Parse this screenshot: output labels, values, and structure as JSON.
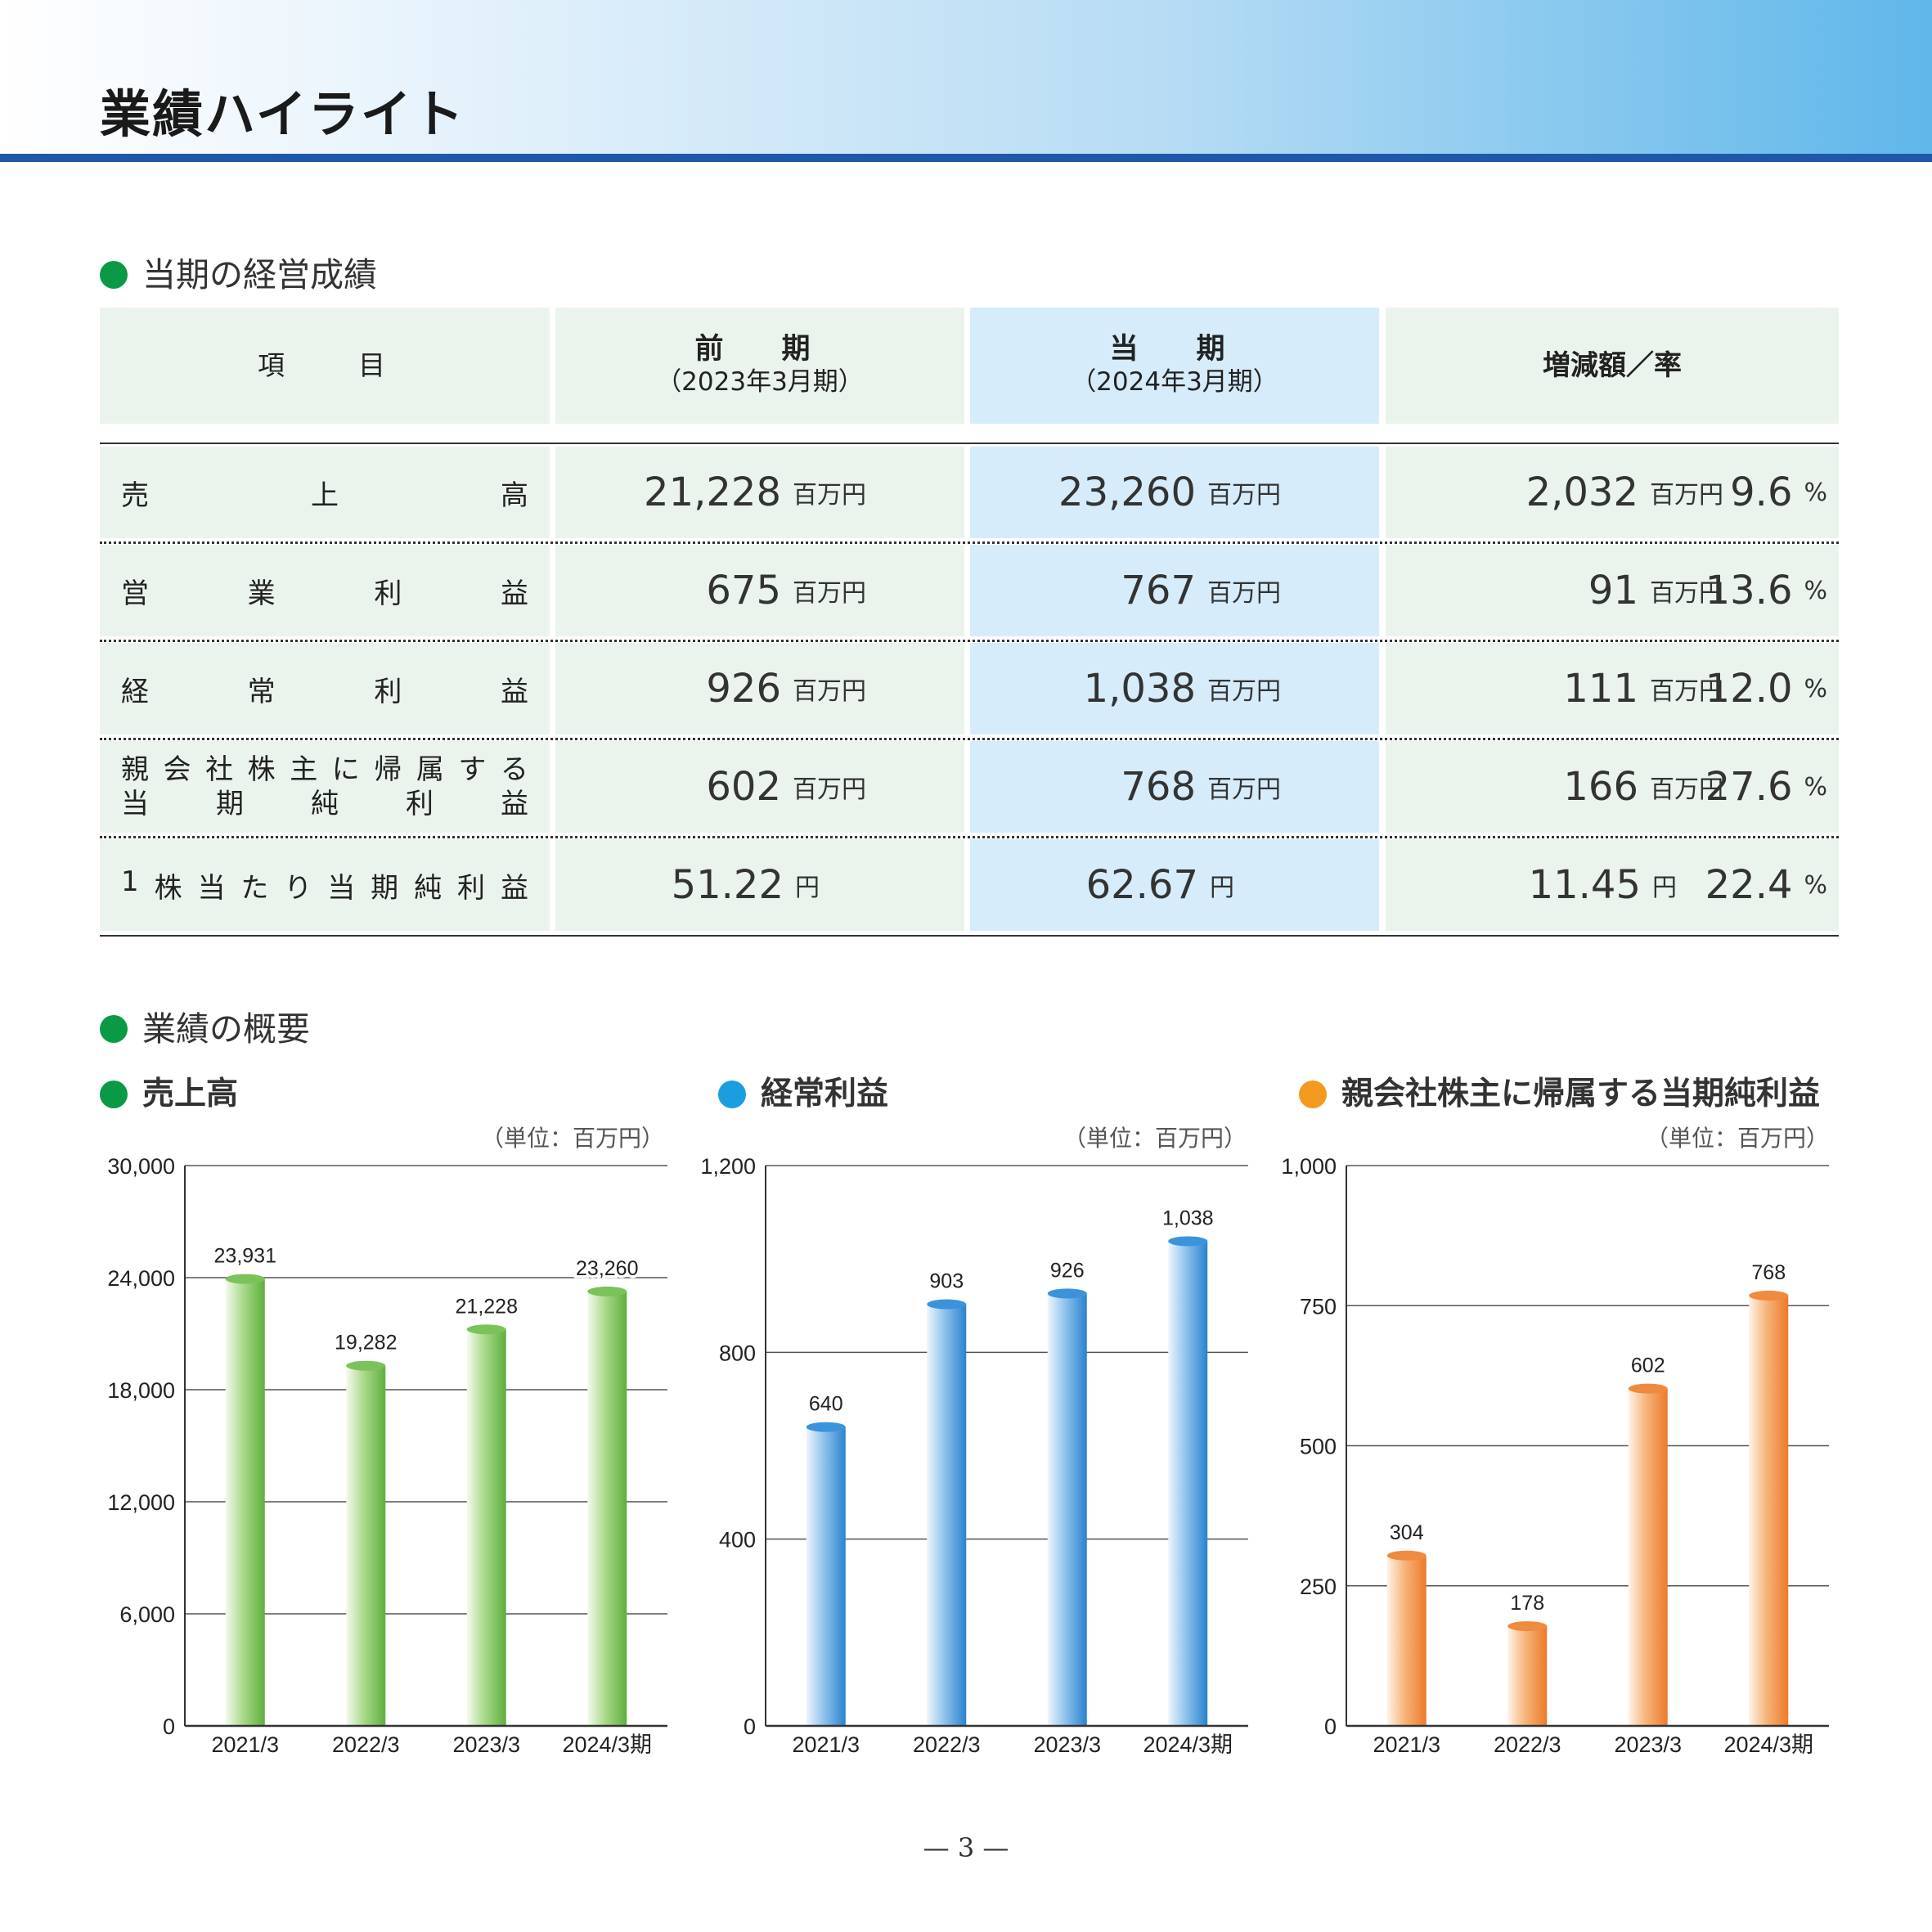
{
  "page": {
    "title": "業績ハイライト",
    "page_number": "— 3 —"
  },
  "results": {
    "section_title": "当期の経営成績",
    "header": {
      "item": "項　　目",
      "prev_main": "前　期",
      "prev_sub": "（2023年3月期）",
      "curr_main": "当　期",
      "curr_sub": "（2024年3月期）",
      "change": "増減額／率"
    },
    "rows": [
      {
        "label_chars": [
          "売",
          "上",
          "高"
        ],
        "prev": "21,228",
        "prev_unit": "百万円",
        "curr": "23,260",
        "curr_unit": "百万円",
        "diff": "2,032",
        "diff_unit": "百万円",
        "rate": "9.6",
        "rate_unit": "%"
      },
      {
        "label_chars": [
          "営",
          "業",
          "利",
          "益"
        ],
        "prev": "675",
        "prev_unit": "百万円",
        "curr": "767",
        "curr_unit": "百万円",
        "diff": "91",
        "diff_unit": "百万円",
        "rate": "13.6",
        "rate_unit": "%"
      },
      {
        "label_chars": [
          "経",
          "常",
          "利",
          "益"
        ],
        "prev": "926",
        "prev_unit": "百万円",
        "curr": "1,038",
        "curr_unit": "百万円",
        "diff": "111",
        "diff_unit": "百万円",
        "rate": "12.0",
        "rate_unit": "%"
      },
      {
        "label_lines": [
          [
            "親",
            "会",
            "社",
            "株",
            "主",
            "に",
            "帰",
            "属",
            "す",
            "る"
          ],
          [
            "当",
            "期",
            "純",
            "利",
            "益"
          ]
        ],
        "prev": "602",
        "prev_unit": "百万円",
        "curr": "768",
        "curr_unit": "百万円",
        "diff": "166",
        "diff_unit": "百万円",
        "rate": "27.6",
        "rate_unit": "%"
      },
      {
        "label_chars": [
          "1",
          "株",
          "当",
          "た",
          "り",
          "当",
          "期",
          "純",
          "利",
          "益"
        ],
        "prev": "51.22",
        "prev_unit": "円",
        "curr": "62.67",
        "curr_unit": "円",
        "diff": "11.45",
        "diff_unit": "円",
        "rate": "22.4",
        "rate_unit": "%"
      }
    ]
  },
  "overview": {
    "section_title": "業績の概要"
  },
  "colors": {
    "green_dot": "#0a9a46",
    "blue_dot": "#1a9ee0",
    "orange_dot": "#f39a1f",
    "rule": "#1f58a8"
  },
  "chart_data": [
    {
      "type": "bar",
      "title": "売上高",
      "unit": "（単位：百万円）",
      "categories": [
        "2021/3",
        "2022/3",
        "2023/3",
        "2024/3期"
      ],
      "values": [
        23931,
        19282,
        21228,
        23260
      ],
      "value_labels": [
        "23,931",
        "19,282",
        "21,228",
        "23,260"
      ],
      "ylim": [
        0,
        30000
      ],
      "yticks": [
        0,
        6000,
        12000,
        18000,
        24000,
        30000
      ],
      "ytick_labels": [
        "0",
        "6,000",
        "12,000",
        "18,000",
        "24,000",
        "30,000"
      ],
      "color": "green"
    },
    {
      "type": "bar",
      "title": "経常利益",
      "unit": "（単位：百万円）",
      "categories": [
        "2021/3",
        "2022/3",
        "2023/3",
        "2024/3期"
      ],
      "values": [
        640,
        903,
        926,
        1038
      ],
      "value_labels": [
        "640",
        "903",
        "926",
        "1,038"
      ],
      "ylim": [
        0,
        1200
      ],
      "yticks": [
        0,
        400,
        800,
        1200
      ],
      "ytick_labels": [
        "0",
        "400",
        "800",
        "1,200"
      ],
      "color": "blue"
    },
    {
      "type": "bar",
      "title": "親会社株主に帰属する当期純利益",
      "unit": "（単位：百万円）",
      "categories": [
        "2021/3",
        "2022/3",
        "2023/3",
        "2024/3期"
      ],
      "values": [
        304,
        178,
        602,
        768
      ],
      "value_labels": [
        "304",
        "178",
        "602",
        "768"
      ],
      "ylim": [
        0,
        1000
      ],
      "yticks": [
        0,
        250,
        500,
        750,
        1000
      ],
      "ytick_labels": [
        "0",
        "250",
        "500",
        "750",
        "1,000"
      ],
      "color": "orange"
    }
  ]
}
